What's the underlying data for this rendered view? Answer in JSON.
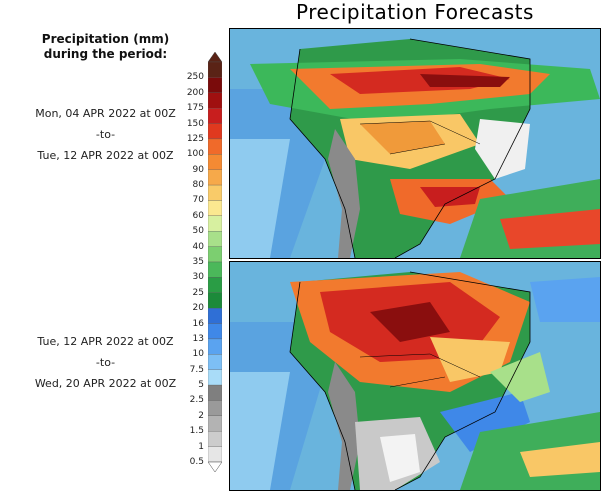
{
  "title": "Precipitation Forecasts",
  "legend": {
    "title_line1": "Precipitation (mm)",
    "title_line2": "during the period:",
    "levels": [
      "250",
      "200",
      "175",
      "150",
      "125",
      "100",
      "90",
      "80",
      "70",
      "60",
      "50",
      "40",
      "35",
      "30",
      "25",
      "20",
      "16",
      "13",
      "10",
      "7.5",
      "5",
      "2.5",
      "2",
      "1.5",
      "1",
      "0.5"
    ],
    "colors": [
      "#5a2316",
      "#7a0b0b",
      "#a01010",
      "#c81e1e",
      "#e0391f",
      "#f06a2a",
      "#f48a33",
      "#f6a94a",
      "#f9cb69",
      "#fbe890",
      "#d7f0a0",
      "#a8e08a",
      "#7ccf70",
      "#4bb85a",
      "#2a9d45",
      "#1c8a3a",
      "#2f6fd6",
      "#3f88e8",
      "#5aa3f0",
      "#7dbff5",
      "#a9dcf8",
      "#7f7f7f",
      "#9a9a9a",
      "#b3b3b3",
      "#cccccc",
      "#e6e6e6"
    ]
  },
  "periods": [
    {
      "start": "Mon, 04 APR 2022 at 00Z",
      "sep": "-to-",
      "end": "Tue, 12 APR 2022 at 00Z"
    },
    {
      "start": "Tue, 12 APR 2022 at 00Z",
      "sep": "-to-",
      "end": "Wed, 20 APR 2022 at 00Z"
    }
  ]
}
